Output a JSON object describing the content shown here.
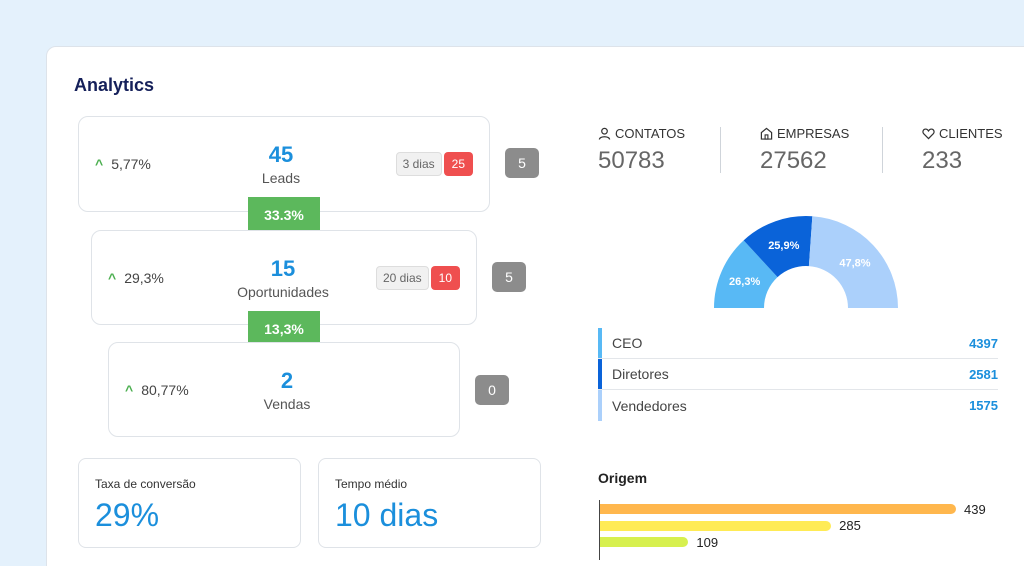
{
  "title": "Analytics",
  "funnel": {
    "stages": [
      {
        "pct": "5,77%",
        "count": "45",
        "name": "Leads",
        "days": "3 dias",
        "late": "25",
        "side": "5"
      },
      {
        "pct": "29,3%",
        "count": "15",
        "name": "Oportunidades",
        "days": "20 dias",
        "late": "10",
        "side": "5"
      },
      {
        "pct": "80,77%",
        "count": "2",
        "name": "Vendas",
        "side": "0"
      }
    ],
    "conversions": [
      "33.3%",
      "13,3%"
    ]
  },
  "kpis": {
    "conversion_label": "Taxa de conversão",
    "conversion_value": "29%",
    "avg_time_label": "Tempo médio",
    "avg_time_value": "10 dias"
  },
  "stats": [
    {
      "label": "CONTATOS",
      "value": "50783",
      "icon": "user-icon"
    },
    {
      "label": "EMPRESAS",
      "value": "27562",
      "icon": "building-icon"
    },
    {
      "label": "CLIENTES",
      "value": "233",
      "icon": "heart-icon"
    }
  ],
  "chart_data": {
    "type": "pie",
    "variant": "half-donut",
    "slices": [
      {
        "label": "26,3%",
        "value": 26.3,
        "color": "#58b9f5"
      },
      {
        "label": "25,9%",
        "value": 25.9,
        "color": "#0a63d9"
      },
      {
        "label": "47,8%",
        "value": 47.8,
        "color": "#abd0fb"
      }
    ]
  },
  "roles": [
    {
      "name": "CEO",
      "value": "4397",
      "color": "#58b9f5"
    },
    {
      "name": "Diretores",
      "value": "2581",
      "color": "#0a63d9"
    },
    {
      "name": "Vendedores",
      "value": "1575",
      "color": "#abd0fb"
    }
  ],
  "origem": {
    "title": "Origem",
    "bars": [
      {
        "value": "439",
        "amount": 439,
        "color": "#ffb74d"
      },
      {
        "value": "285",
        "amount": 285,
        "color": "#ffeb55"
      },
      {
        "value": "109",
        "amount": 109,
        "color": "#d7f04f"
      }
    ]
  },
  "colors": {
    "accent": "#1b8fdc",
    "conversion_green": "#5cb85c",
    "late_red": "#ef4f4f"
  }
}
